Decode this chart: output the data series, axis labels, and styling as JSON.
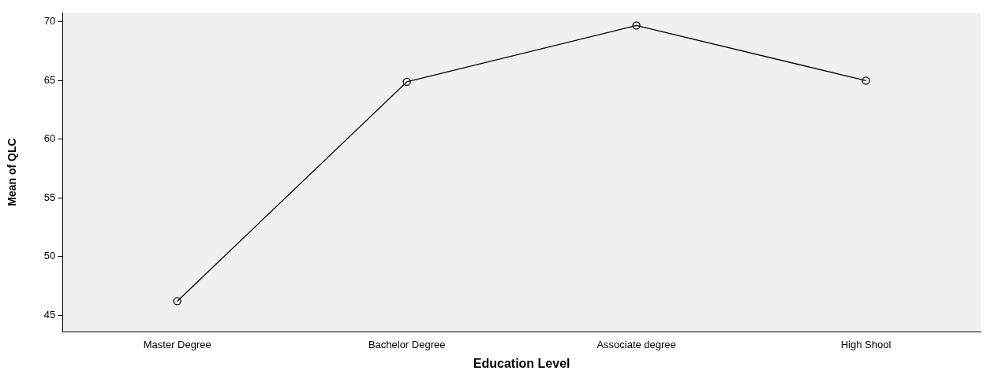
{
  "chart_data": {
    "type": "line",
    "xlabel": "Education Level",
    "ylabel": "Mean of QLC",
    "categories": [
      "Master Degree",
      "Bachelor Degree",
      "Associate degree",
      "High Shool"
    ],
    "series": [
      {
        "color": "#000000",
        "values": [
          46.2,
          64.9,
          69.7,
          65.0
        ]
      }
    ],
    "ylim": [
      43.6,
      70.8
    ],
    "yticks": [
      45,
      50,
      55,
      60,
      65,
      70
    ],
    "grid": false,
    "legend": false,
    "marker": "circle",
    "line_style": "solid"
  }
}
